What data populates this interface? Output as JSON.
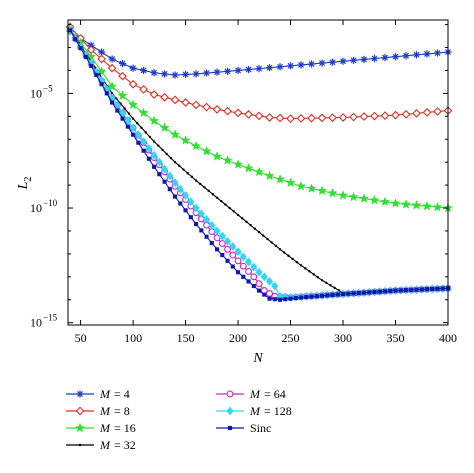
{
  "chart_data": {
    "type": "line",
    "xlabel": "N",
    "ylabel": "L",
    "ylabel_sub": "2",
    "xlim": [
      38,
      400
    ],
    "ylim_log10": [
      -15.1,
      -1.8
    ],
    "y_scale": "log",
    "grid": false,
    "legend_placement": "below",
    "x_ticks": [
      {
        "v": 50,
        "label": "50"
      },
      {
        "v": 100,
        "label": "100"
      },
      {
        "v": 150,
        "label": "150"
      },
      {
        "v": 200,
        "label": "200"
      },
      {
        "v": 250,
        "label": "250"
      },
      {
        "v": 300,
        "label": "300"
      },
      {
        "v": 350,
        "label": "350"
      },
      {
        "v": 400,
        "label": "400"
      }
    ],
    "y_ticks": [
      {
        "exp": -5,
        "base": "10",
        "exp_label": "−5"
      },
      {
        "exp": -10,
        "base": "10",
        "exp_label": "−10"
      },
      {
        "exp": -15,
        "base": "10",
        "exp_label": "−15"
      }
    ],
    "series": [
      {
        "id": "m4",
        "name": "M = 4",
        "legend_prefix": "M",
        "legend_value": "= 4",
        "color": "#1f3cc8",
        "marker": "asterisk",
        "anchors_log10": [
          [
            40,
            -2.3
          ],
          [
            60,
            -2.9
          ],
          [
            80,
            -3.5
          ],
          [
            100,
            -3.9
          ],
          [
            120,
            -4.1
          ],
          [
            140,
            -4.2
          ],
          [
            160,
            -4.15
          ],
          [
            200,
            -4.0
          ],
          [
            250,
            -3.8
          ],
          [
            300,
            -3.6
          ],
          [
            350,
            -3.4
          ],
          [
            400,
            -3.2
          ]
        ]
      },
      {
        "id": "m8",
        "name": "M = 8",
        "legend_prefix": "M",
        "legend_value": "= 8",
        "color": "#d83020",
        "marker": "diamond",
        "anchors_log10": [
          [
            40,
            -2.1
          ],
          [
            60,
            -3.1
          ],
          [
            80,
            -3.9
          ],
          [
            100,
            -4.6
          ],
          [
            120,
            -5.05
          ],
          [
            150,
            -5.4
          ],
          [
            180,
            -5.7
          ],
          [
            200,
            -5.85
          ],
          [
            230,
            -6.05
          ],
          [
            250,
            -6.1
          ],
          [
            300,
            -6.05
          ],
          [
            350,
            -5.95
          ],
          [
            400,
            -5.75
          ]
        ]
      },
      {
        "id": "m16",
        "name": "M = 16",
        "legend_prefix": "M",
        "legend_value": "= 16",
        "color": "#30e030",
        "marker": "star",
        "anchors_log10": [
          [
            40,
            -2.2
          ],
          [
            60,
            -3.4
          ],
          [
            80,
            -4.7
          ],
          [
            100,
            -5.5
          ],
          [
            120,
            -6.2
          ],
          [
            140,
            -6.8
          ],
          [
            160,
            -7.3
          ],
          [
            180,
            -7.75
          ],
          [
            200,
            -8.1
          ],
          [
            230,
            -8.6
          ],
          [
            260,
            -9.05
          ],
          [
            300,
            -9.45
          ],
          [
            350,
            -9.8
          ],
          [
            400,
            -10.0
          ]
        ]
      },
      {
        "id": "m32",
        "name": "M = 32",
        "legend_prefix": "M",
        "legend_value": "= 32",
        "color": "#000000",
        "marker": "point",
        "anchors_log10": [
          [
            40,
            -2.25
          ],
          [
            60,
            -3.6
          ],
          [
            80,
            -5.0
          ],
          [
            100,
            -6.1
          ],
          [
            120,
            -7.1
          ],
          [
            140,
            -8.0
          ],
          [
            160,
            -8.8
          ],
          [
            180,
            -9.55
          ],
          [
            200,
            -10.3
          ],
          [
            220,
            -11.05
          ],
          [
            240,
            -11.8
          ],
          [
            260,
            -12.5
          ],
          [
            280,
            -13.15
          ],
          [
            300,
            -13.7
          ],
          [
            310,
            -13.8
          ],
          [
            350,
            -13.6
          ],
          [
            400,
            -13.45
          ]
        ]
      },
      {
        "id": "m64",
        "name": "M = 64",
        "legend_prefix": "M",
        "legend_value": "= 64",
        "color": "#d020d0",
        "marker": "circle",
        "anchors_log10": [
          [
            40,
            -2.25
          ],
          [
            60,
            -3.7
          ],
          [
            80,
            -5.2
          ],
          [
            100,
            -6.5
          ],
          [
            120,
            -7.8
          ],
          [
            140,
            -9.05
          ],
          [
            160,
            -10.2
          ],
          [
            180,
            -11.3
          ],
          [
            200,
            -12.3
          ],
          [
            215,
            -13.0
          ],
          [
            225,
            -13.6
          ],
          [
            235,
            -13.85
          ],
          [
            250,
            -13.9
          ],
          [
            300,
            -13.75
          ],
          [
            350,
            -13.6
          ],
          [
            400,
            -13.5
          ]
        ]
      },
      {
        "id": "m128",
        "name": "M = 128",
        "legend_prefix": "M",
        "legend_value": "= 128",
        "color": "#30d8f0",
        "marker": "diamond-filled",
        "anchors_log10": [
          [
            40,
            -2.25
          ],
          [
            60,
            -3.7
          ],
          [
            80,
            -5.2
          ],
          [
            100,
            -6.5
          ],
          [
            120,
            -7.7
          ],
          [
            140,
            -8.9
          ],
          [
            160,
            -10.0
          ],
          [
            180,
            -11.0
          ],
          [
            200,
            -11.9
          ],
          [
            220,
            -12.8
          ],
          [
            235,
            -13.4
          ],
          [
            240,
            -13.85
          ],
          [
            250,
            -13.9
          ],
          [
            300,
            -13.75
          ],
          [
            350,
            -13.6
          ],
          [
            400,
            -13.5
          ]
        ]
      },
      {
        "id": "sinc",
        "name": "Sinc",
        "legend_prefix": "",
        "legend_value": "Sinc",
        "color": "#0a1aa8",
        "marker": "square",
        "anchors_log10": [
          [
            40,
            -2.25
          ],
          [
            60,
            -3.8
          ],
          [
            80,
            -5.4
          ],
          [
            100,
            -6.8
          ],
          [
            120,
            -8.2
          ],
          [
            140,
            -9.5
          ],
          [
            160,
            -10.7
          ],
          [
            180,
            -11.8
          ],
          [
            200,
            -12.8
          ],
          [
            220,
            -13.6
          ],
          [
            230,
            -13.95
          ],
          [
            240,
            -14.0
          ],
          [
            260,
            -13.9
          ],
          [
            300,
            -13.75
          ],
          [
            350,
            -13.6
          ],
          [
            400,
            -13.5
          ]
        ]
      }
    ]
  }
}
